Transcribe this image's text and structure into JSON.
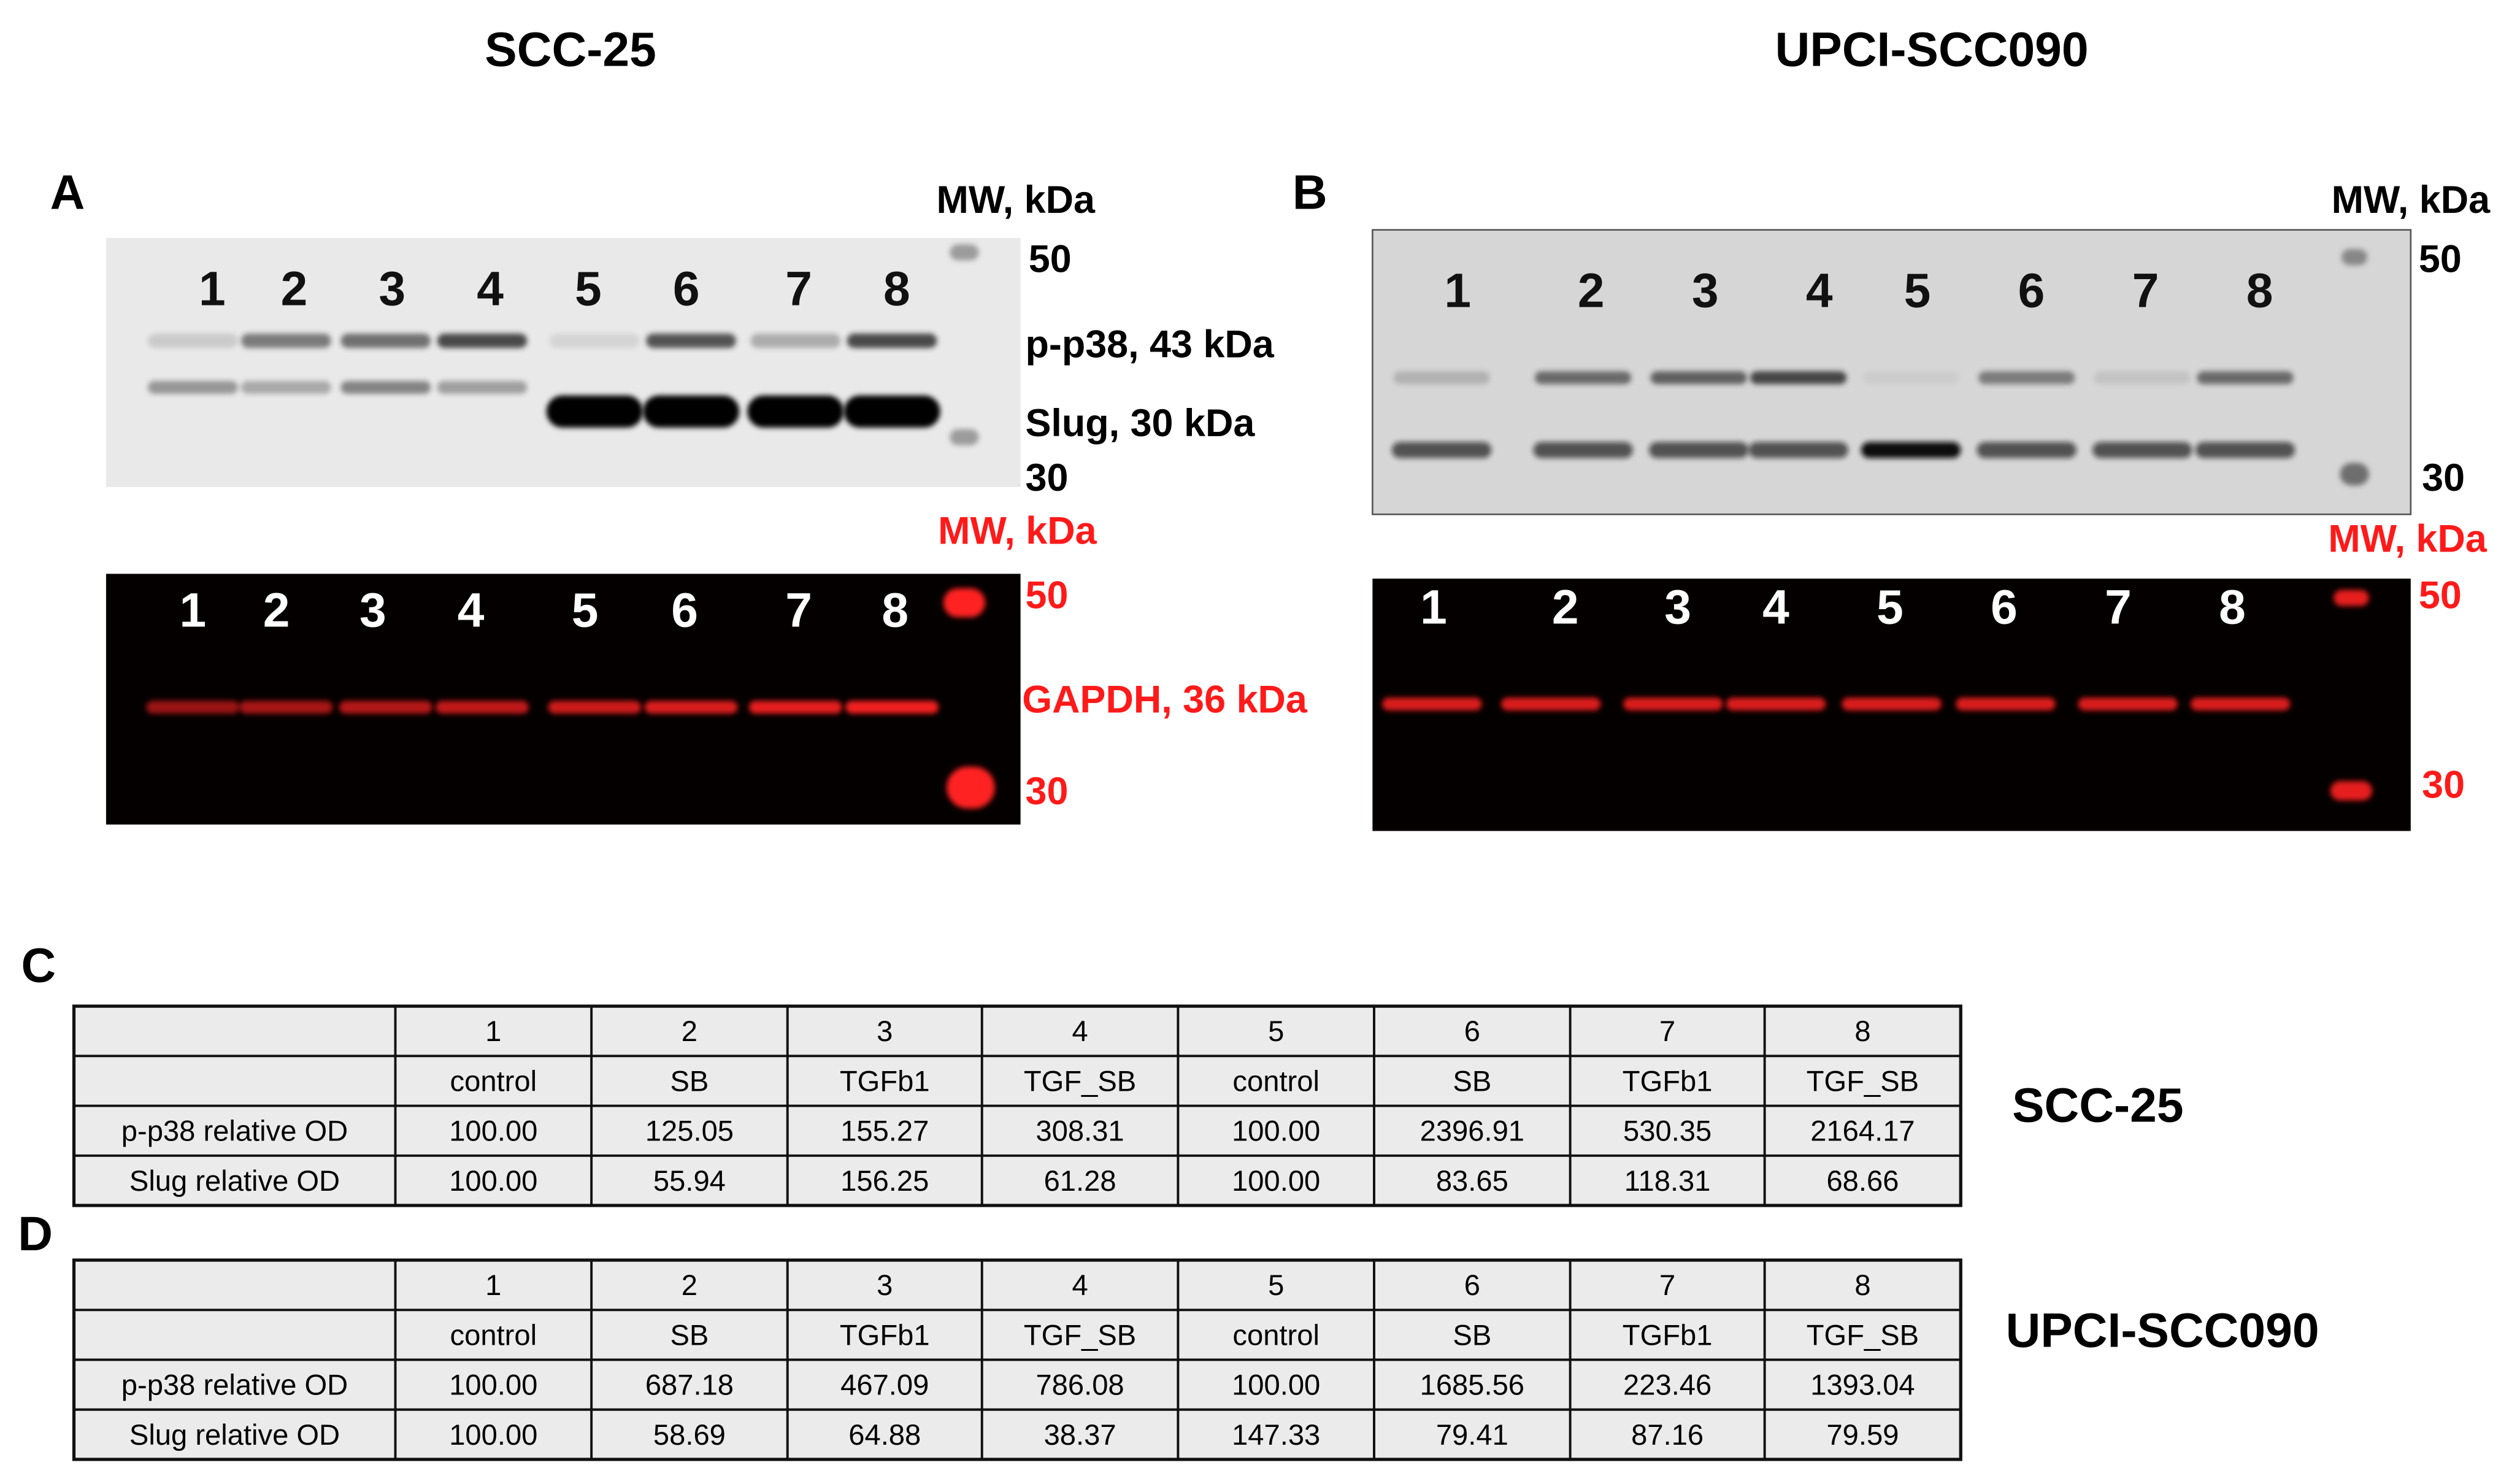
{
  "titles": [
    "SCC-25",
    "UPCI-SCC090"
  ],
  "lanes": [
    "1",
    "2",
    "3",
    "4",
    "5",
    "6",
    "7",
    "8"
  ],
  "treatments": [
    "control",
    "SB",
    "TGFb1",
    "TGF_SB",
    "control",
    "SB",
    "TGFb1",
    "TGF_SB"
  ],
  "panels": [
    {
      "letter": "A",
      "top_blot": {
        "mw_label": "MW, kDa",
        "markers": [
          "50",
          "30"
        ],
        "bands": [
          "p-p38, 43 kDa",
          "Slug, 30 kDa"
        ]
      },
      "bottom_blot": {
        "mw_label": "MW, kDa",
        "markers": [
          "50",
          "30"
        ],
        "band": "GAPDH, 36 kDa"
      }
    },
    {
      "letter": "B",
      "top_blot": {
        "mw_label": "MW, kDa",
        "markers": [
          "50",
          "30"
        ]
      },
      "bottom_blot": {
        "mw_label": "MW, kDa",
        "markers": [
          "50",
          "30"
        ]
      }
    }
  ],
  "tables": [
    {
      "letter": "C",
      "cell_line": "SCC-25",
      "rows": [
        {
          "label": "p-p38 relative OD",
          "values": [
            "100.00",
            "125.05",
            "155.27",
            "308.31",
            "100.00",
            "2396.91",
            "530.35",
            "2164.17"
          ]
        },
        {
          "label": "Slug relative OD",
          "values": [
            "100.00",
            "55.94",
            "156.25",
            "61.28",
            "100.00",
            "83.65",
            "118.31",
            "68.66"
          ]
        }
      ]
    },
    {
      "letter": "D",
      "cell_line": "UPCI-SCC090",
      "rows": [
        {
          "label": "p-p38 relative OD",
          "values": [
            "100.00",
            "687.18",
            "467.09",
            "786.08",
            "100.00",
            "1685.56",
            "223.46",
            "1393.04"
          ]
        },
        {
          "label": "Slug relative OD",
          "values": [
            "100.00",
            "58.69",
            "64.88",
            "38.37",
            "147.33",
            "79.41",
            "87.16",
            "79.59"
          ]
        }
      ]
    }
  ]
}
